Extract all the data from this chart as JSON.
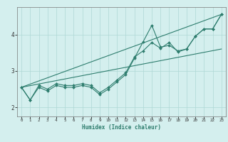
{
  "xlabel": "Humidex (Indice chaleur)",
  "ylabel": "",
  "background_color": "#d4efee",
  "grid_color": "#aed8d5",
  "line_color": "#2e7d6e",
  "xlim": [
    -0.5,
    23.5
  ],
  "ylim": [
    1.75,
    4.75
  ],
  "yticks": [
    2,
    3,
    4
  ],
  "xticks": [
    0,
    1,
    2,
    3,
    4,
    5,
    6,
    7,
    8,
    9,
    10,
    11,
    12,
    13,
    14,
    15,
    16,
    17,
    18,
    19,
    20,
    21,
    22,
    23
  ],
  "series1_x": [
    0,
    1,
    2,
    3,
    4,
    5,
    6,
    7,
    8,
    9,
    10,
    11,
    12,
    13,
    14,
    15,
    16,
    17,
    18,
    19,
    20,
    21,
    22,
    23
  ],
  "series1_y": [
    2.55,
    2.2,
    2.55,
    2.45,
    2.6,
    2.55,
    2.55,
    2.6,
    2.55,
    2.35,
    2.5,
    2.7,
    2.9,
    3.35,
    3.8,
    4.25,
    3.65,
    3.7,
    3.55,
    3.6,
    3.95,
    4.15,
    4.15,
    4.55
  ],
  "series2_x": [
    0,
    1,
    2,
    3,
    4,
    5,
    6,
    7,
    8,
    9,
    10,
    11,
    12,
    13,
    14,
    15,
    16,
    17,
    18,
    19,
    20,
    21,
    22,
    23
  ],
  "series2_y": [
    2.55,
    2.2,
    2.6,
    2.5,
    2.65,
    2.6,
    2.6,
    2.65,
    2.6,
    2.4,
    2.55,
    2.75,
    2.95,
    3.38,
    3.55,
    3.78,
    3.62,
    3.78,
    3.52,
    3.6,
    3.95,
    4.15,
    4.15,
    4.55
  ],
  "line1_x": [
    0,
    23
  ],
  "line1_y": [
    2.55,
    3.6
  ],
  "line2_x": [
    0,
    23
  ],
  "line2_y": [
    2.55,
    4.55
  ]
}
